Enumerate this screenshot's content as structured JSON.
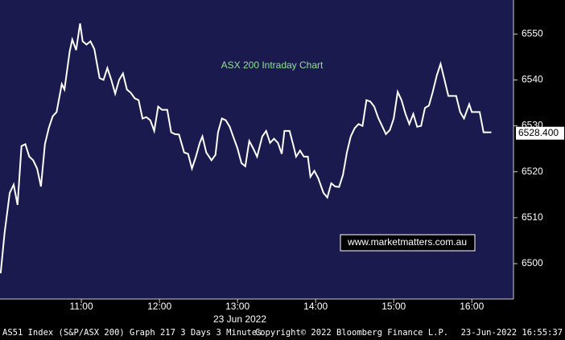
{
  "chart_data": {
    "type": "line",
    "title": "ASX 200 Intraday Chart",
    "date_label": "23 Jun 2022",
    "watermark": "www.marketmatters.com.au",
    "footer": {
      "left": "AS51 Index (S&P/ASX 200) Graph 217 3 Days 3 Minutes",
      "center": "Copyright© 2022 Bloomberg Finance L.P.",
      "right": "23-Jun-2022 16:55:37"
    },
    "last_price": {
      "value": 6528.4,
      "label": "6528.400"
    },
    "color": "#ffffff",
    "x": [
      598,
      601,
      605,
      608,
      611,
      614,
      617,
      620,
      623,
      626,
      629,
      632,
      635,
      638,
      641,
      645,
      647,
      651,
      653,
      656,
      659,
      661,
      664,
      667,
      670,
      674,
      677,
      680,
      683,
      686,
      689,
      692,
      695,
      698,
      701,
      704,
      707,
      710,
      713,
      716,
      719,
      722,
      726,
      729,
      732,
      735,
      739,
      742,
      745,
      748,
      751,
      753,
      756,
      760,
      763,
      765,
      768,
      771,
      774,
      777,
      780,
      783,
      786,
      789,
      792,
      795,
      799,
      802,
      805,
      808,
      811,
      814,
      816,
      820,
      823,
      825,
      828,
      831,
      834,
      836,
      839,
      842,
      846,
      849,
      852,
      855,
      858,
      861,
      864,
      867,
      870,
      873,
      876,
      879,
      882,
      885,
      888,
      891,
      894,
      897,
      900,
      903,
      906,
      909,
      912,
      915,
      918,
      921,
      924,
      927,
      930,
      933,
      936,
      939,
      942,
      945,
      948,
      951,
      954,
      958,
      960,
      963,
      966,
      969,
      975
    ],
    "values": [
      6497.9,
      6506.7,
      6515.4,
      6517.2,
      6512.8,
      6525.6,
      6526.0,
      6523.3,
      6522.5,
      6520.7,
      6516.8,
      6526.0,
      6529.5,
      6532.1,
      6533.0,
      6539.1,
      6537.9,
      6546.1,
      6548.8,
      6546.5,
      6552.3,
      6548.4,
      6547.7,
      6548.4,
      6546.7,
      6540.4,
      6540.0,
      6542.6,
      6540.0,
      6537.0,
      6540.0,
      6541.4,
      6537.9,
      6537.2,
      6536.0,
      6535.6,
      6531.6,
      6531.9,
      6531.2,
      6528.9,
      6534.2,
      6533.5,
      6533.5,
      6528.6,
      6528.2,
      6528.1,
      6524.2,
      6523.9,
      6520.7,
      6523.3,
      6526.3,
      6527.7,
      6524.2,
      6522.5,
      6523.7,
      6528.6,
      6531.6,
      6531.2,
      6529.8,
      6527.4,
      6525.1,
      6521.9,
      6521.2,
      6526.7,
      6525.1,
      6523.3,
      6527.7,
      6528.9,
      6526.3,
      6527.2,
      6526.3,
      6523.9,
      6528.9,
      6528.9,
      6525.6,
      6523.3,
      6524.6,
      6523.3,
      6523.3,
      6518.9,
      6520.2,
      6518.6,
      6515.4,
      6514.4,
      6517.5,
      6516.8,
      6516.7,
      6519.3,
      6524.2,
      6527.7,
      6529.5,
      6530.4,
      6530.0,
      6535.6,
      6535.3,
      6534.2,
      6531.8,
      6530.0,
      6528.2,
      6529.1,
      6531.6,
      6537.4,
      6535.6,
      6532.6,
      6530.4,
      6532.6,
      6529.8,
      6530.0,
      6533.9,
      6534.4,
      6537.4,
      6540.9,
      6543.5,
      6540.0,
      6536.5,
      6536.5,
      6536.5,
      6533.0,
      6531.6,
      6534.7,
      6533.0,
      6533.0,
      6533.0,
      6528.6,
      6528.6
    ],
    "xlim": [
      597.5,
      992
    ],
    "xticks": [
      {
        "value": 660,
        "label": "11:00"
      },
      {
        "value": 720,
        "label": "12:00"
      },
      {
        "value": 780,
        "label": "13:00"
      },
      {
        "value": 840,
        "label": "14:00"
      },
      {
        "value": 900,
        "label": "15:00"
      },
      {
        "value": 960,
        "label": "16:00"
      }
    ],
    "ylim": [
      6492.3,
      6557.4
    ],
    "yticks": [
      6500,
      6510,
      6520,
      6530,
      6540,
      6550
    ]
  }
}
